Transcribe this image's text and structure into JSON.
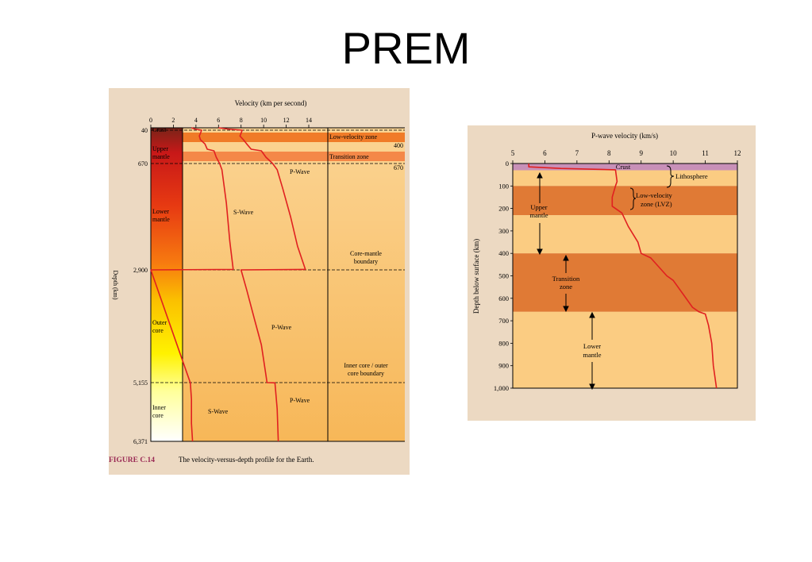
{
  "slide_title": "PREM",
  "colors": {
    "panel_bg": "#ecd9c2",
    "light_zone": "#fbcc82",
    "dark_zone": "#e07a35",
    "crust_band": "#c890b8",
    "curve": "#e02020"
  },
  "chart_data": [
    {
      "type": "line",
      "title": "Velocity (km per second)",
      "xlabel": "Velocity (km per second)",
      "ylabel": "Depth (km)",
      "x_ticks": [
        "0",
        "2",
        "4",
        "6",
        "8",
        "10",
        "12",
        "14"
      ],
      "xlim": [
        0,
        14
      ],
      "y_ticks": [
        "40",
        "670",
        "2,900",
        "5,155",
        "6,371"
      ],
      "ylim": [
        0,
        6371
      ],
      "series": [
        {
          "name": "P-Wave",
          "points": [
            [
              6.0,
              0
            ],
            [
              6.8,
              20
            ],
            [
              8.1,
              40
            ],
            [
              8.0,
              100
            ],
            [
              7.9,
              150
            ],
            [
              8.2,
              220
            ],
            [
              8.5,
              300
            ],
            [
              8.9,
              400
            ],
            [
              9.8,
              430
            ],
            [
              10.2,
              550
            ],
            [
              10.8,
              670
            ],
            [
              11.2,
              800
            ],
            [
              11.7,
              1200
            ],
            [
              12.4,
              1800
            ],
            [
              13.0,
              2400
            ],
            [
              13.7,
              2890
            ],
            [
              8.0,
              2900
            ],
            [
              8.5,
              3300
            ],
            [
              9.2,
              3900
            ],
            [
              9.8,
              4400
            ],
            [
              10.2,
              5000
            ],
            [
              10.3,
              5155
            ],
            [
              11.0,
              5160
            ],
            [
              11.2,
              5700
            ],
            [
              11.3,
              6371
            ]
          ]
        },
        {
          "name": "S-Wave",
          "points": [
            [
              3.6,
              0
            ],
            [
              3.9,
              20
            ],
            [
              4.5,
              40
            ],
            [
              4.4,
              100
            ],
            [
              4.3,
              150
            ],
            [
              4.4,
              220
            ],
            [
              4.8,
              300
            ],
            [
              5.0,
              400
            ],
            [
              5.6,
              430
            ],
            [
              5.8,
              550
            ],
            [
              6.1,
              670
            ],
            [
              6.3,
              800
            ],
            [
              6.7,
              1500
            ],
            [
              7.0,
              2300
            ],
            [
              7.3,
              2890
            ],
            [
              0,
              2900
            ],
            [
              3.5,
              5160
            ],
            [
              3.6,
              5500
            ],
            [
              3.6,
              6000
            ],
            [
              3.7,
              6371
            ]
          ]
        }
      ],
      "zones": [
        {
          "label": "Crust",
          "from": 0,
          "to": 40
        },
        {
          "label": "Upper mantle",
          "from": 40,
          "to": 670
        },
        {
          "label": "Lower mantle",
          "from": 670,
          "to": 2900
        },
        {
          "label": "Outer core",
          "from": 2900,
          "to": 5155
        },
        {
          "label": "Inner core",
          "from": 5155,
          "to": 6371
        }
      ],
      "annotations": {
        "low_velocity_zone": "Low-velocity zone",
        "d400": "400",
        "transition_zone": "Transition zone",
        "d670": "670",
        "cmb_line1": "Core-mantle",
        "cmb_line2": "boundary",
        "icb_line1": "Inner core / outer",
        "icb_line2": "core boundary",
        "pwave_upper": "P-Wave",
        "swave_mantle": "S-Wave",
        "pwave_outer": "P-Wave",
        "pwave_inner": "P-Wave",
        "swave_inner": "S-Wave"
      },
      "figure_label": "FIGURE C.14",
      "caption": "The velocity-versus-depth profile for the Earth."
    },
    {
      "type": "line",
      "title": "P-wave velocity (km/s)",
      "xlabel": "P-wave velocity (km/s)",
      "ylabel": "Depth below surface (km)",
      "x_ticks": [
        "5",
        "6",
        "7",
        "8",
        "9",
        "10",
        "11",
        "12"
      ],
      "xlim": [
        5,
        12
      ],
      "y_ticks": [
        "0",
        "100",
        "200",
        "300",
        "400",
        "500",
        "600",
        "700",
        "800",
        "900",
        "1,000"
      ],
      "ylim": [
        0,
        1000
      ],
      "series": [
        {
          "name": "P-wave velocity",
          "points": [
            [
              5.5,
              0
            ],
            [
              5.5,
              15
            ],
            [
              6.5,
              22
            ],
            [
              8.2,
              28
            ],
            [
              8.25,
              80
            ],
            [
              8.2,
              100
            ],
            [
              8.1,
              150
            ],
            [
              8.1,
              190
            ],
            [
              8.4,
              220
            ],
            [
              8.6,
              280
            ],
            [
              8.9,
              350
            ],
            [
              9.0,
              400
            ],
            [
              9.3,
              420
            ],
            [
              9.8,
              500
            ],
            [
              10.0,
              520
            ],
            [
              10.3,
              580
            ],
            [
              10.6,
              640
            ],
            [
              10.8,
              660
            ],
            [
              11.0,
              670
            ],
            [
              11.1,
              720
            ],
            [
              11.2,
              800
            ],
            [
              11.25,
              900
            ],
            [
              11.35,
              1000
            ]
          ]
        }
      ],
      "bands": [
        {
          "kind": "crust",
          "from": 0,
          "to": 30
        },
        {
          "kind": "light",
          "from": 30,
          "to": 100
        },
        {
          "kind": "dark",
          "from": 100,
          "to": 230
        },
        {
          "kind": "light",
          "from": 230,
          "to": 400
        },
        {
          "kind": "dark",
          "from": 400,
          "to": 660
        },
        {
          "kind": "light",
          "from": 660,
          "to": 1000
        }
      ],
      "annotations": {
        "crust": "Crust",
        "lithosphere": "Lithosphere",
        "lvz_line1": "Low-velocity",
        "lvz_line2": "zone (LVZ)",
        "upper_mantle_line1": "Upper",
        "upper_mantle_line2": "mantle",
        "transition_line1": "Transition",
        "transition_line2": "zone",
        "lower_mantle_line1": "Lower",
        "lower_mantle_line2": "mantle"
      }
    }
  ]
}
